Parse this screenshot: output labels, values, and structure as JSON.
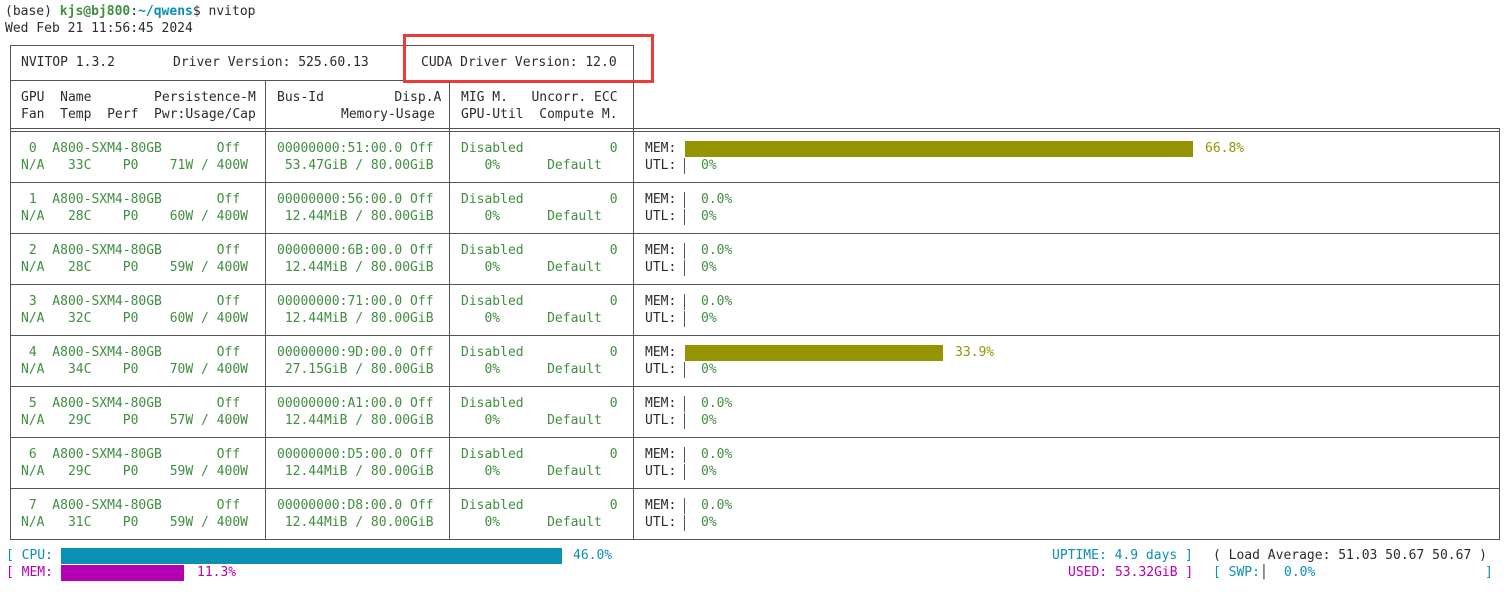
{
  "prompt": {
    "prefix": "(base) ",
    "userhost": "kjs@bj800",
    "colon": ":",
    "path": "~/qwens",
    "symbol": "$ ",
    "command": "nvitop"
  },
  "datetime": "Wed Feb 21 11:56:45 2024",
  "header": {
    "nvitop_version": "NVITOP 1.3.2",
    "driver_version": "Driver Version: 525.60.13",
    "cuda_version": "CUDA Driver Version: 12.0"
  },
  "columns": {
    "col1_line1": "GPU  Name        Persistence-M",
    "col1_line2": "Fan  Temp  Perf  Pwr:Usage/Cap",
    "col2_line1": "Bus-Id         Disp.A",
    "col2_line2": "Memory-Usage",
    "col3_line1": "MIG M.   Uncorr. ECC",
    "col3_line2": "GPU-Util  Compute M."
  },
  "gpus": [
    {
      "l1a": " 0  A800-SXM4-80GB       Off",
      "l2a": "N/A   33C    P0    71W / 400W",
      "l1b": "00000000:51:00.0 Off",
      "l2b": " 53.47GiB / 80.00GiB",
      "l1c": "Disabled           0",
      "l2c": "   0%      Default",
      "mem_label": "MEM:",
      "mem_value": "66.8%",
      "mem_fraction": 0.668,
      "utl_label": "UTL:",
      "utl_value": "0%"
    },
    {
      "l1a": " 1  A800-SXM4-80GB       Off",
      "l2a": "N/A   28C    P0    60W / 400W",
      "l1b": "00000000:56:00.0 Off",
      "l2b": " 12.44MiB / 80.00GiB",
      "l1c": "Disabled           0",
      "l2c": "   0%      Default",
      "mem_label": "MEM:",
      "mem_value": "0.0%",
      "mem_fraction": 0.0,
      "utl_label": "UTL:",
      "utl_value": "0%"
    },
    {
      "l1a": " 2  A800-SXM4-80GB       Off",
      "l2a": "N/A   28C    P0    59W / 400W",
      "l1b": "00000000:6B:00.0 Off",
      "l2b": " 12.44MiB / 80.00GiB",
      "l1c": "Disabled           0",
      "l2c": "   0%      Default",
      "mem_label": "MEM:",
      "mem_value": "0.0%",
      "mem_fraction": 0.0,
      "utl_label": "UTL:",
      "utl_value": "0%"
    },
    {
      "l1a": " 3  A800-SXM4-80GB       Off",
      "l2a": "N/A   32C    P0    60W / 400W",
      "l1b": "00000000:71:00.0 Off",
      "l2b": " 12.44MiB / 80.00GiB",
      "l1c": "Disabled           0",
      "l2c": "   0%      Default",
      "mem_label": "MEM:",
      "mem_value": "0.0%",
      "mem_fraction": 0.0,
      "utl_label": "UTL:",
      "utl_value": "0%"
    },
    {
      "l1a": " 4  A800-SXM4-80GB       Off",
      "l2a": "N/A   34C    P0    70W / 400W",
      "l1b": "00000000:9D:00.0 Off",
      "l2b": " 27.15GiB / 80.00GiB",
      "l1c": "Disabled           0",
      "l2c": "   0%      Default",
      "mem_label": "MEM:",
      "mem_value": "33.9%",
      "mem_fraction": 0.339,
      "utl_label": "UTL:",
      "utl_value": "0%"
    },
    {
      "l1a": " 5  A800-SXM4-80GB       Off",
      "l2a": "N/A   29C    P0    57W / 400W",
      "l1b": "00000000:A1:00.0 Off",
      "l2b": " 12.44MiB / 80.00GiB",
      "l1c": "Disabled           0",
      "l2c": "   0%      Default",
      "mem_label": "MEM:",
      "mem_value": "0.0%",
      "mem_fraction": 0.0,
      "utl_label": "UTL:",
      "utl_value": "0%"
    },
    {
      "l1a": " 6  A800-SXM4-80GB       Off",
      "l2a": "N/A   29C    P0    59W / 400W",
      "l1b": "00000000:D5:00.0 Off",
      "l2b": " 12.44MiB / 80.00GiB",
      "l1c": "Disabled           0",
      "l2c": "   0%      Default",
      "mem_label": "MEM:",
      "mem_value": "0.0%",
      "mem_fraction": 0.0,
      "utl_label": "UTL:",
      "utl_value": "0%"
    },
    {
      "l1a": " 7  A800-SXM4-80GB       Off",
      "l2a": "N/A   31C    P0    59W / 400W",
      "l1b": "00000000:D8:00.0 Off",
      "l2b": " 12.44MiB / 80.00GiB",
      "l1c": "Disabled           0",
      "l2c": "   0%      Default",
      "mem_label": "MEM:",
      "mem_value": "0.0%",
      "mem_fraction": 0.0,
      "utl_label": "UTL:",
      "utl_value": "0%"
    }
  ],
  "host": {
    "cpu_label": "[ CPU:",
    "cpu_value": "46.0%",
    "cpu_fraction": 0.46,
    "mem_label": "[ MEM:",
    "mem_value": "11.3%",
    "mem_fraction": 0.113,
    "uptime": "UPTIME: 4.9 days ]",
    "load_average": "( Load Average: 51.03 50.67 50.67 )",
    "used": "USED: 53.32GiB ]",
    "swp_open": "[ SWP:",
    "swp_value": "0.0%",
    "swp_close": "]"
  },
  "colors": {
    "gpu_bar": "#949400",
    "cpu_bar": "#0b8fb2",
    "mem_bar": "#b300b3",
    "highlight_box": "#ef3a3a"
  }
}
